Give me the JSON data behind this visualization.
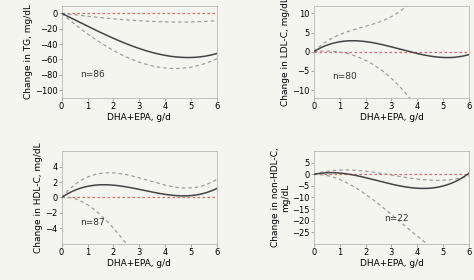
{
  "subplots": [
    {
      "ylabel": "Change in TG, mg/dL",
      "xlabel": "DHA+EPA, g/d",
      "annotation": "n=86",
      "ylim": [
        -110,
        10
      ],
      "yticks": [
        0,
        -20,
        -40,
        -60,
        -80,
        -100
      ],
      "xlim": [
        0,
        6
      ],
      "xticks": [
        0,
        1,
        2,
        3,
        4,
        5,
        6
      ]
    },
    {
      "ylabel": "Change in LDL-C, mg/dL",
      "xlabel": "DHA+EPA, g/d",
      "annotation": "n=80",
      "ylim": [
        -12,
        12
      ],
      "yticks": [
        -10,
        -5,
        0,
        5,
        10
      ],
      "xlim": [
        0,
        6
      ],
      "xticks": [
        0,
        1,
        2,
        3,
        4,
        5,
        6
      ]
    },
    {
      "ylabel": "Change in HDL-C, mg/dL",
      "xlabel": "DHA+EPA, g/d",
      "annotation": "n=87",
      "ylim": [
        -6,
        6
      ],
      "yticks": [
        -4,
        -2,
        0,
        2,
        4
      ],
      "xlim": [
        0,
        6
      ],
      "xticks": [
        0,
        1,
        2,
        3,
        4,
        5,
        6
      ]
    },
    {
      "ylabel": "Change in non-HDL-C,\nmg/dL",
      "xlabel": "DHA+EPA, g/d",
      "annotation": "n=22",
      "ylim": [
        -30,
        10
      ],
      "yticks": [
        -25,
        -20,
        -15,
        -10,
        -5,
        0,
        5
      ],
      "xlim": [
        0,
        6
      ],
      "xticks": [
        0,
        1,
        2,
        3,
        4,
        5,
        6
      ]
    }
  ],
  "line_color": "#444444",
  "ci_color": "#999999",
  "ref_color": "#dd6666",
  "background_color": "#f5f5f0",
  "font_size": 6.5,
  "annotation_fontsize": 6.5
}
